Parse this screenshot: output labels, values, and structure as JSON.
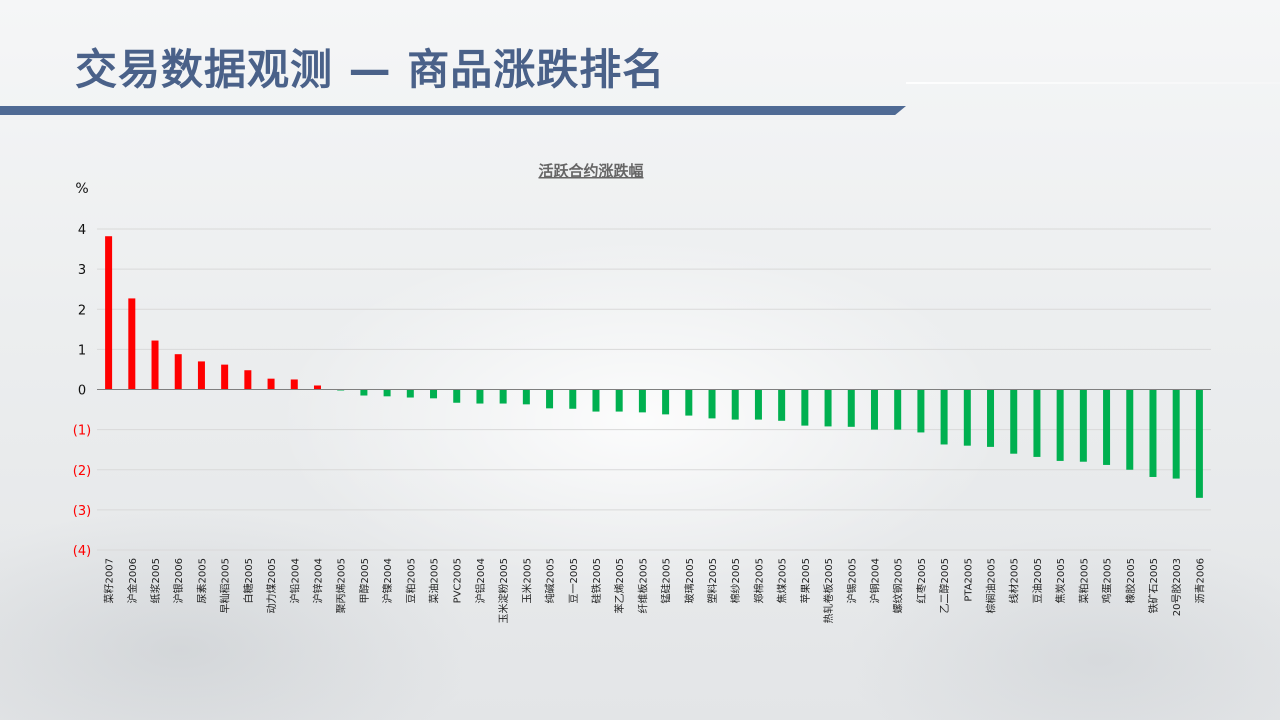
{
  "slide": {
    "title": "交易数据观测 — 商品涨跌排名"
  },
  "colors": {
    "title": "#4a6189",
    "title_bar": "#4f6a94",
    "up": "#ff0000",
    "down": "#00b050",
    "negative_tick": "#ff0000"
  },
  "chart_data": {
    "type": "bar",
    "title": "活跃合约涨跌幅",
    "ylabel": "%",
    "ylim": [
      -4,
      4
    ],
    "yticks": [
      {
        "value": 4,
        "label": "4"
      },
      {
        "value": 3,
        "label": "3"
      },
      {
        "value": 2,
        "label": "2"
      },
      {
        "value": 1,
        "label": "1"
      },
      {
        "value": 0,
        "label": "0"
      },
      {
        "value": -1,
        "label": "(1)"
      },
      {
        "value": -2,
        "label": "(2)"
      },
      {
        "value": -3,
        "label": "(3)"
      },
      {
        "value": -4,
        "label": "(4)"
      }
    ],
    "grid": true,
    "legend": "none",
    "categories": [
      "菜籽2007",
      "沪金2006",
      "纸浆2005",
      "沪银2006",
      "尿素2005",
      "早籼稻2005",
      "白糖2005",
      "动力煤2005",
      "沪铅2004",
      "沪锌2004",
      "聚丙烯2005",
      "甲醇2005",
      "沪镍2004",
      "豆粕2005",
      "菜油2005",
      "PVC2005",
      "沪铝2004",
      "玉米淀粉2005",
      "玉米2005",
      "纯碱2005",
      "豆一2005",
      "硅铁2005",
      "苯乙烯2005",
      "纤维板2005",
      "锰硅2005",
      "玻璃2005",
      "塑料2005",
      "棉纱2005",
      "郑棉2005",
      "焦煤2005",
      "苹果2005",
      "热轧卷板2005",
      "沪锡2005",
      "沪铜2004",
      "螺纹钢2005",
      "红枣2005",
      "乙二醇2005",
      "PTA2005",
      "棕榈油2005",
      "线材2005",
      "豆油2005",
      "焦炭2005",
      "菜粕2005",
      "鸡蛋2005",
      "橡胶2005",
      "铁矿石2005",
      "20号胶2003",
      "沥青2006"
    ],
    "values": [
      3.82,
      2.27,
      1.22,
      0.88,
      0.7,
      0.62,
      0.48,
      0.27,
      0.25,
      0.1,
      -0.02,
      -0.15,
      -0.17,
      -0.2,
      -0.22,
      -0.33,
      -0.35,
      -0.35,
      -0.37,
      -0.47,
      -0.48,
      -0.55,
      -0.55,
      -0.57,
      -0.62,
      -0.65,
      -0.72,
      -0.75,
      -0.75,
      -0.78,
      -0.9,
      -0.92,
      -0.93,
      -1.0,
      -1.0,
      -1.07,
      -1.37,
      -1.4,
      -1.43,
      -1.6,
      -1.68,
      -1.78,
      -1.8,
      -1.88,
      -2.0,
      -2.18,
      -2.22,
      -2.7
    ]
  }
}
